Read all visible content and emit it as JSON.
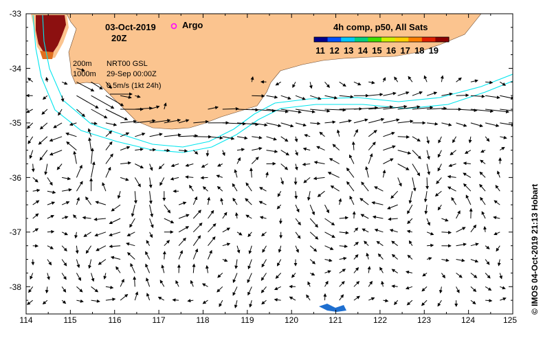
{
  "map": {
    "date": "03-Oct-2019",
    "time": "20Z",
    "argo_label": "Argo",
    "colorbar_title": "4h comp, p50, All Sats",
    "colorbar_ticks": [
      "11",
      "12",
      "13",
      "14",
      "15",
      "16",
      "17",
      "18",
      "19"
    ],
    "colorbar_colors": [
      "#00008c",
      "#0050ff",
      "#00c8ff",
      "#00d080",
      "#40e000",
      "#d0f000",
      "#ffd000",
      "#ff8000",
      "#e02000",
      "#8c0000"
    ],
    "contour_labels": {
      "c200": "200m",
      "c1000": "1000m"
    },
    "nrt_label": "NRT00 GSL",
    "date_ref": "29-Sep 00:00Z",
    "scale_label": "0.5m/s (1kt 24h)",
    "copyright": "© IMOS 04-Oct-2019 21:13 Hobart",
    "colors": {
      "land": "#fbc48f",
      "contour": "#00e5ee",
      "argo": "#ff00ff"
    },
    "axes": {
      "lon": {
        "min": 114,
        "max": 125,
        "ticks": [
          "114",
          "115",
          "116",
          "117",
          "118",
          "119",
          "120",
          "121",
          "122",
          "123",
          "124",
          "125"
        ]
      },
      "lat": {
        "min": -38.5,
        "max": -33,
        "ticks": [
          "-33",
          "-34",
          "-35",
          "-36",
          "-37",
          "-38"
        ]
      }
    }
  }
}
